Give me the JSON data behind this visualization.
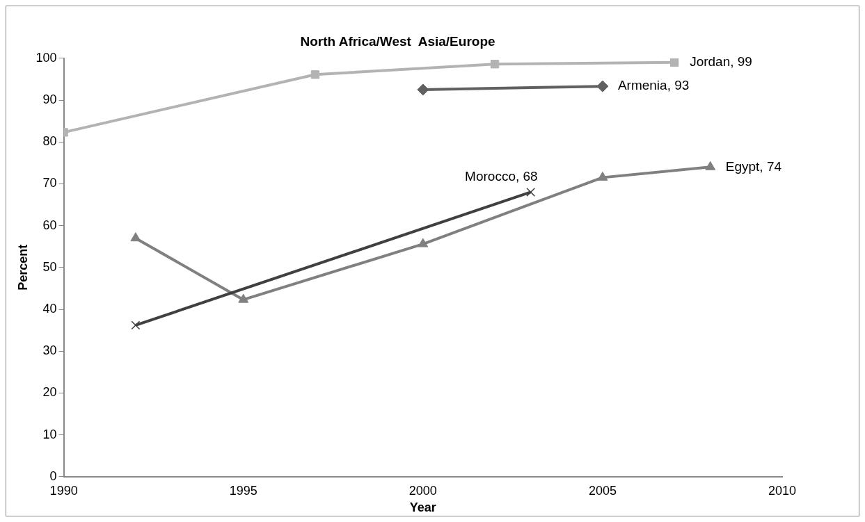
{
  "chart_data": {
    "type": "line",
    "title": "North Africa/West  Asia/Europe",
    "xlabel": "Year",
    "ylabel": "Percent",
    "xlim": [
      1990,
      2010
    ],
    "xticks": [
      1990,
      1995,
      2000,
      2005,
      2010
    ],
    "ylim": [
      0,
      100
    ],
    "yticks": [
      0,
      10,
      20,
      30,
      40,
      50,
      60,
      70,
      80,
      90,
      100
    ],
    "grid": false,
    "legend": false,
    "series": [
      {
        "color": "#b3b3b3",
        "marker": "square",
        "x": [
          1990,
          1997,
          2002,
          2007
        ],
        "values": [
          82.3,
          96.1,
          98.6,
          99
        ]
      },
      {
        "color": "#606060",
        "marker": "diamond",
        "x": [
          2000,
          2005
        ],
        "values": [
          92.5,
          93.3
        ]
      },
      {
        "color": "#404040",
        "marker": "cross",
        "x": [
          1992,
          2003
        ],
        "values": [
          36.2,
          68
        ]
      },
      {
        "color": "#808080",
        "marker": "triangle",
        "x": [
          1992,
          1995,
          2000,
          2005,
          2008
        ],
        "values": [
          57.0,
          42.3,
          55.6,
          71.5,
          74
        ]
      }
    ],
    "annotations": [
      {
        "text": "Jordan, 99",
        "x": 2007,
        "y": 99
      },
      {
        "text": "Armenia, 93",
        "x": 2005,
        "y": 93.3
      },
      {
        "text": "Morocco, 68",
        "x": 2003,
        "y": 68
      },
      {
        "text": "Egypt, 74",
        "x": 2008,
        "y": 74
      }
    ]
  }
}
